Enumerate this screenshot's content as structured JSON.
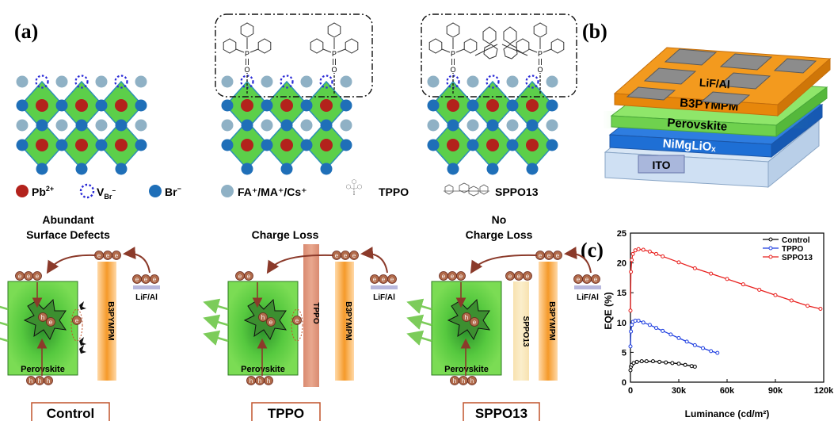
{
  "panel_labels": {
    "a": "(a)",
    "b": "(b)",
    "c": "(c)"
  },
  "legend": {
    "pb": "Pb",
    "pb_sup": "2+",
    "vbr": "V",
    "vbr_sub": "Br",
    "vbr_sup": "−",
    "br": "Br",
    "br_sup": "−",
    "cation": "FA⁺/MA⁺/Cs⁺",
    "tppo": "TPPO",
    "sppo13": "SPPO13"
  },
  "molecule": {
    "P": "P",
    "O": "O"
  },
  "mechanisms": {
    "control": {
      "title_line1": "Abundant",
      "title_line2": "Surface Defects",
      "caption": "Control"
    },
    "tppo": {
      "title_line1": "Charge Loss",
      "caption": "TPPO",
      "layer": "TPPO"
    },
    "sppo13": {
      "title_line1": "No",
      "title_line2": "Charge Loss",
      "caption": "SPPO13",
      "layer": "SPPO13"
    },
    "etl": "B3PYMPM",
    "cathode": "LiF/Al",
    "perovskite": "Perovskite",
    "electrons": "eee",
    "electrons_two": "ee",
    "holes": "hhh",
    "h": "h",
    "e": "e"
  },
  "device": {
    "layers": [
      "LiF/Al",
      "B3PYMPM",
      "Perovskite",
      "NiMgLiOₓ",
      "ITO"
    ]
  },
  "chart_data": {
    "type": "line",
    "xlabel": "Luminance (cd/m²)",
    "ylabel": "EQE (%)",
    "xlim": [
      0,
      120000
    ],
    "ylim": [
      0,
      25
    ],
    "xticks": [
      "0",
      "30k",
      "60k",
      "90k",
      "120k"
    ],
    "yticks": [
      "0",
      "5",
      "10",
      "15",
      "20",
      "25"
    ],
    "legend_position": "top-right",
    "series": [
      {
        "name": "Control",
        "color": "#000000",
        "x": [
          0,
          300,
          800,
          2000,
          4000,
          7000,
          10000,
          14000,
          18000,
          22000,
          26000,
          30000,
          34000,
          38000,
          40000
        ],
        "y": [
          2.0,
          2.6,
          2.9,
          3.2,
          3.4,
          3.5,
          3.5,
          3.5,
          3.4,
          3.3,
          3.2,
          3.1,
          2.9,
          2.7,
          2.6
        ]
      },
      {
        "name": "TPPO",
        "color": "#1f3fe0",
        "x": [
          0,
          300,
          800,
          1500,
          3000,
          5000,
          8000,
          12000,
          16000,
          20000,
          25000,
          30000,
          35000,
          40000,
          45000,
          50000,
          54000
        ],
        "y": [
          6.0,
          8.5,
          9.6,
          10.1,
          10.3,
          10.3,
          10.0,
          9.6,
          9.1,
          8.6,
          8.0,
          7.4,
          6.8,
          6.2,
          5.7,
          5.2,
          4.9
        ]
      },
      {
        "name": "SPPO13",
        "color": "#e8201e",
        "x": [
          0,
          300,
          800,
          1500,
          3000,
          5000,
          8000,
          12000,
          16000,
          20000,
          30000,
          40000,
          50000,
          60000,
          70000,
          80000,
          90000,
          100000,
          110000,
          118000
        ],
        "y": [
          12.0,
          18.5,
          20.5,
          21.5,
          22.1,
          22.3,
          22.2,
          21.9,
          21.5,
          21.1,
          20.1,
          19.1,
          18.2,
          17.3,
          16.4,
          15.5,
          14.6,
          13.7,
          12.8,
          12.3
        ]
      }
    ]
  }
}
